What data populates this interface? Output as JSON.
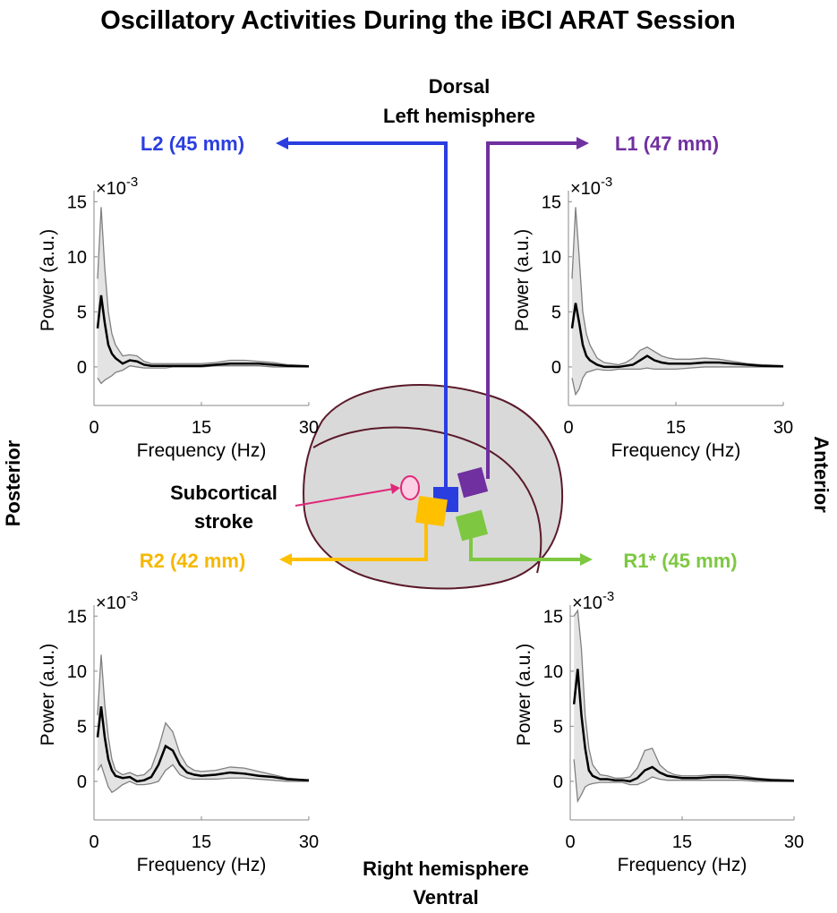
{
  "title": "Oscillatory Activities During the iBCI ARAT Session",
  "diagram": {
    "dorsal": "Dorsal",
    "left_hemisphere": "Left hemisphere",
    "right_hemisphere": "Right hemisphere",
    "ventral": "Ventral",
    "posterior": "Posterior",
    "anterior": "Anterior",
    "stroke_line1": "Subcortical",
    "stroke_line2": "stroke"
  },
  "chart_data": [
    {
      "type": "line",
      "title": "L2 (45 mm)",
      "title_color": "#2a3ee0",
      "xlabel": "Frequency (Hz)",
      "ylabel": "Power (a.u.)",
      "y_multiplier": "×10",
      "y_multiplier_exponent": "-3",
      "x": [
        0.5,
        1,
        1.5,
        2,
        2.5,
        3,
        4,
        5,
        6,
        7,
        8,
        9,
        10,
        11,
        12,
        13,
        14,
        15,
        17,
        19,
        21,
        23,
        25,
        27,
        30
      ],
      "xlim": [
        0,
        30
      ],
      "xticks": [
        0,
        15,
        30
      ],
      "ylim": [
        -3.5,
        16
      ],
      "yticks": [
        0,
        5,
        10,
        15
      ],
      "band": true,
      "series": [
        {
          "color": "#000000",
          "values": [
            3.5,
            6.5,
            4,
            2,
            1.2,
            0.8,
            0.3,
            0.6,
            0.5,
            0.2,
            0.1,
            0.1,
            0.1,
            0.1,
            0.1,
            0.1,
            0.1,
            0.1,
            0.2,
            0.3,
            0.3,
            0.3,
            0.2,
            0.1,
            0.05
          ]
        },
        {
          "color": "#808080",
          "values": [
            8,
            14.5,
            9,
            5,
            3,
            2,
            1,
            1.1,
            1,
            0.5,
            0.3,
            0.3,
            0.3,
            0.3,
            0.3,
            0.3,
            0.3,
            0.3,
            0.4,
            0.6,
            0.6,
            0.5,
            0.4,
            0.2,
            0.1
          ]
        },
        {
          "color": "#808080",
          "values": [
            -1,
            -1.5,
            -1.2,
            -1,
            -0.8,
            -0.5,
            -0.3,
            0.1,
            0,
            -0.1,
            -0.1,
            -0.1,
            -0.1,
            0,
            0,
            0,
            0,
            0,
            0.1,
            0.1,
            0.1,
            0.1,
            0,
            0,
            0
          ]
        }
      ]
    },
    {
      "type": "line",
      "title": "L1 (47 mm)",
      "title_color": "#7030a0",
      "xlabel": "Frequency (Hz)",
      "ylabel": "Power (a.u.)",
      "y_multiplier": "×10",
      "y_multiplier_exponent": "-3",
      "x": [
        0.5,
        1,
        1.5,
        2,
        2.5,
        3,
        4,
        5,
        6,
        7,
        8,
        9,
        10,
        11,
        12,
        13,
        14,
        15,
        17,
        19,
        21,
        23,
        25,
        27,
        30
      ],
      "xlim": [
        0,
        30
      ],
      "xticks": [
        0,
        15,
        30
      ],
      "ylim": [
        -3.5,
        16
      ],
      "yticks": [
        0,
        5,
        10,
        15
      ],
      "band": true,
      "series": [
        {
          "color": "#000000",
          "values": [
            3.5,
            5.8,
            4,
            2,
            1,
            0.6,
            0.2,
            0,
            0,
            0,
            0.1,
            0.2,
            0.6,
            1,
            0.6,
            0.4,
            0.3,
            0.3,
            0.3,
            0.4,
            0.4,
            0.3,
            0.2,
            0.1,
            0.05
          ]
        },
        {
          "color": "#808080",
          "values": [
            8,
            14.5,
            10,
            5,
            3,
            2,
            0.8,
            0.4,
            0.3,
            0.2,
            0.4,
            0.8,
            1.5,
            1.8,
            1.4,
            1,
            0.8,
            0.7,
            0.7,
            0.8,
            0.7,
            0.5,
            0.3,
            0.2,
            0.1
          ]
        },
        {
          "color": "#808080",
          "values": [
            -1,
            -2.5,
            -2,
            -1,
            -0.5,
            -0.4,
            -0.2,
            -0.3,
            -0.3,
            -0.2,
            -0.2,
            -0.2,
            -0.2,
            -0.1,
            -0.2,
            -0.2,
            -0.2,
            -0.2,
            -0.1,
            0,
            0,
            0,
            0,
            0,
            0
          ]
        }
      ]
    },
    {
      "type": "line",
      "title": "R2  (42 mm)",
      "title_color": "#f5b800",
      "xlabel": "Frequency (Hz)",
      "ylabel": "Power (a.u.)",
      "y_multiplier": "×10",
      "y_multiplier_exponent": "-3",
      "x": [
        0.5,
        1,
        1.5,
        2,
        2.5,
        3,
        4,
        5,
        6,
        7,
        8,
        9,
        10,
        11,
        12,
        13,
        14,
        15,
        17,
        19,
        21,
        23,
        25,
        27,
        30
      ],
      "xlim": [
        0,
        30
      ],
      "xticks": [
        0,
        15,
        30
      ],
      "ylim": [
        -3.5,
        16
      ],
      "yticks": [
        0,
        5,
        10,
        15
      ],
      "band": true,
      "series": [
        {
          "color": "#000000",
          "values": [
            4,
            6.8,
            4,
            2,
            1,
            0.5,
            0.3,
            0.4,
            0,
            0.1,
            0.4,
            1.5,
            3.2,
            2.8,
            1.5,
            0.8,
            0.6,
            0.5,
            0.6,
            0.8,
            0.7,
            0.5,
            0.4,
            0.2,
            0.1
          ]
        },
        {
          "color": "#808080",
          "values": [
            6,
            11.5,
            7,
            4,
            2,
            1,
            0.6,
            0.8,
            0.5,
            0.6,
            1.2,
            3,
            5.3,
            4.5,
            2.5,
            1.4,
            1,
            0.9,
            1,
            1.3,
            1.2,
            0.9,
            0.6,
            0.3,
            0.1
          ]
        },
        {
          "color": "#808080",
          "values": [
            1,
            1.5,
            0.5,
            -0.5,
            -1,
            -0.8,
            -0.3,
            0,
            -0.3,
            -0.3,
            -0.2,
            0,
            1,
            1.5,
            0.6,
            0.3,
            0.2,
            0.2,
            0.2,
            0.3,
            0.3,
            0.2,
            0.1,
            0,
            0
          ]
        }
      ]
    },
    {
      "type": "line",
      "title": "R1* (45 mm)",
      "title_color": "#7dc840",
      "xlabel": "Frequency (Hz)",
      "ylabel": "Power (a.u.)",
      "y_multiplier": "×10",
      "y_multiplier_exponent": "-3",
      "x": [
        0.5,
        1,
        1.5,
        2,
        2.5,
        3,
        4,
        5,
        6,
        7,
        8,
        9,
        10,
        11,
        12,
        13,
        14,
        15,
        17,
        19,
        21,
        23,
        25,
        27,
        30
      ],
      "xlim": [
        0,
        30
      ],
      "xticks": [
        0,
        15,
        30
      ],
      "ylim": [
        -3.5,
        16
      ],
      "yticks": [
        0,
        5,
        10,
        15
      ],
      "band": true,
      "series": [
        {
          "color": "#000000",
          "values": [
            7,
            10.2,
            6,
            3,
            1,
            0.5,
            0.2,
            0.2,
            0.1,
            0.1,
            0,
            0.3,
            1,
            1.3,
            0.8,
            0.5,
            0.4,
            0.3,
            0.3,
            0.4,
            0.4,
            0.3,
            0.2,
            0.1,
            0.05
          ]
        },
        {
          "color": "#808080",
          "values": [
            15,
            15.5,
            12,
            6,
            3,
            1.5,
            0.6,
            0.5,
            0.3,
            0.3,
            0.4,
            1.2,
            2.8,
            3,
            1.5,
            0.9,
            0.6,
            0.5,
            0.5,
            0.6,
            0.6,
            0.5,
            0.3,
            0.2,
            0.1
          ]
        },
        {
          "color": "#808080",
          "values": [
            2,
            -1.8,
            -1.2,
            -0.5,
            -0.3,
            -0.2,
            -0.1,
            -0.1,
            -0.1,
            -0.1,
            -0.3,
            -0.3,
            0,
            0.4,
            0.2,
            0.1,
            0.1,
            0.1,
            0.1,
            0.1,
            0.1,
            0.1,
            0,
            0,
            0
          ]
        }
      ]
    }
  ]
}
